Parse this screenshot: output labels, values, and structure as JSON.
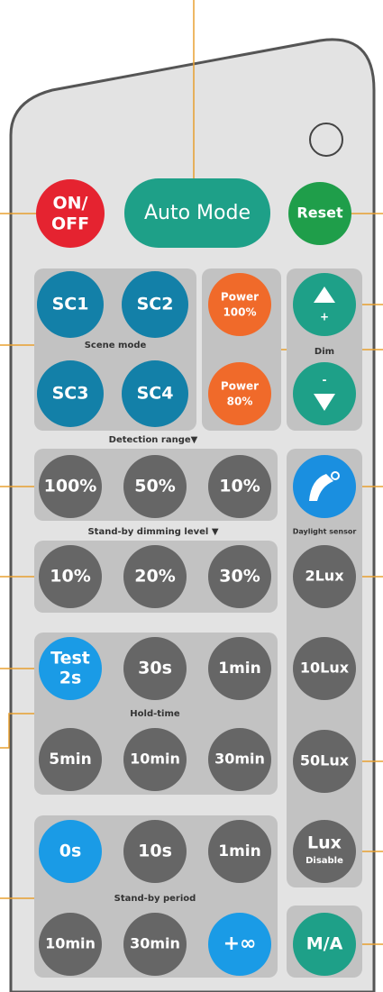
{
  "top_row": {
    "on_off": [
      "ON/",
      "OFF"
    ],
    "auto_mode": "Auto Mode",
    "reset": "Reset"
  },
  "scene_mode": {
    "label": "Scene mode",
    "buttons": [
      "SC1",
      "SC2",
      "SC3",
      "SC4"
    ]
  },
  "power": [
    [
      "Power",
      "100%"
    ],
    [
      "Power",
      "80%"
    ]
  ],
  "dim": {
    "label": "Dim",
    "up": "+",
    "down": "-"
  },
  "detection_range": {
    "label": "Detection range▼",
    "buttons": [
      "100%",
      "50%",
      "10%"
    ]
  },
  "standby_dimming_level": {
    "label": "Stand-by dimming level ▼",
    "buttons": [
      "10%",
      "20%",
      "30%"
    ]
  },
  "hold_time": {
    "label": "Hold-time",
    "test": [
      "Test",
      "2s"
    ],
    "buttons": [
      "30s",
      "1min",
      "5min",
      "10min",
      "30min"
    ]
  },
  "daylight_sensor": {
    "label": "Daylight sensor",
    "buttons": [
      "2Lux",
      "10Lux",
      "50Lux"
    ],
    "lux_disable": [
      "Lux",
      "Disable"
    ]
  },
  "standby_period": {
    "label": "Stand-by period",
    "buttons": [
      "0s",
      "10s",
      "1min",
      "10min",
      "30min",
      "+∞"
    ]
  },
  "ma": "M/A"
}
